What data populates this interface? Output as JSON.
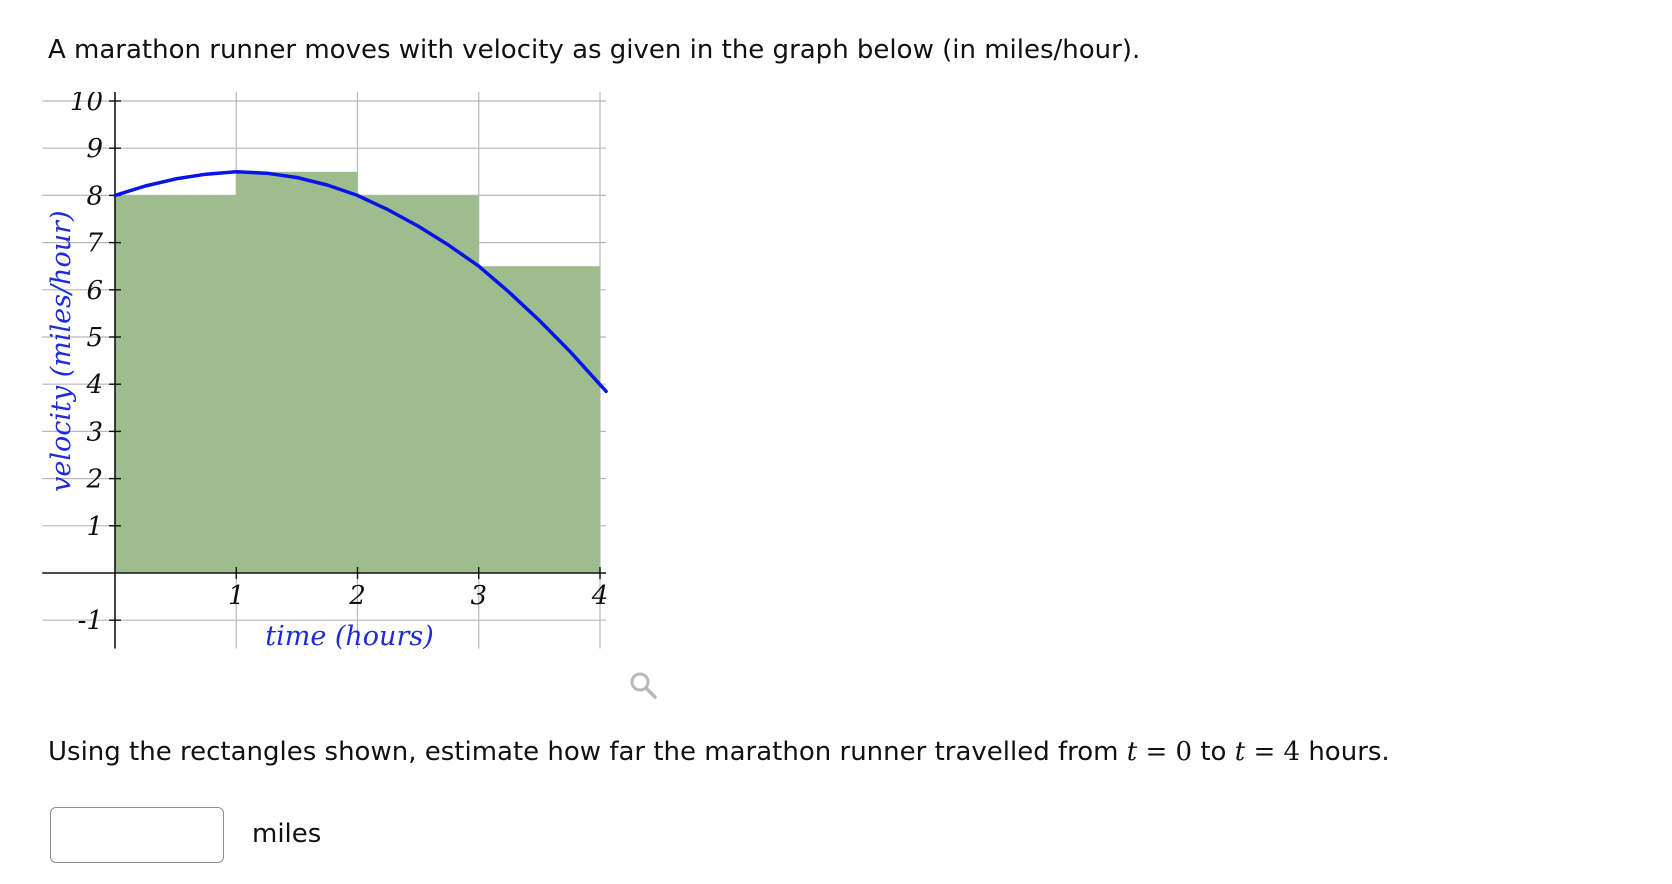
{
  "question": {
    "intro": "A marathon runner moves with velocity as given in the graph below (in miles/hour).",
    "prompt_before": "Using the rectangles shown, estimate how far the marathon runner travelled from ",
    "var_t": "t",
    "equals": "=",
    "start_value": "0",
    "to": " to ",
    "end_value": "4",
    "prompt_after": " hours."
  },
  "answer": {
    "value": "",
    "placeholder": "",
    "unit": "miles"
  },
  "chart_data": {
    "type": "area",
    "xlabel": "time (hours)",
    "ylabel": "velocity (miles/hour)",
    "xlim": [
      -0.6,
      4.05
    ],
    "ylim": [
      -1.6,
      10.2
    ],
    "x_ticks": [
      "1",
      "2",
      "3",
      "4"
    ],
    "y_ticks": [
      "10",
      "9",
      "8",
      "7",
      "6",
      "5",
      "4",
      "3",
      "2",
      "1",
      "-1"
    ],
    "grid": true,
    "rectangles": [
      {
        "x0": 0,
        "x1": 1,
        "height": 8
      },
      {
        "x0": 1,
        "x1": 2,
        "height": 8.5
      },
      {
        "x0": 2,
        "x1": 3,
        "height": 8
      },
      {
        "x0": 3,
        "x1": 4,
        "height": 6.5
      }
    ],
    "curve": {
      "x": [
        0,
        0.25,
        0.5,
        0.75,
        1,
        1.25,
        1.5,
        1.75,
        2,
        2.25,
        2.5,
        2.75,
        3,
        3.25,
        3.5,
        3.75,
        4.05
      ],
      "y": [
        8,
        8.2,
        8.35,
        8.45,
        8.5,
        8.47,
        8.38,
        8.22,
        8,
        7.7,
        7.35,
        6.95,
        6.5,
        5.95,
        5.35,
        4.7,
        3.85
      ]
    },
    "colors": {
      "rectangle_fill": "#9dbd8f",
      "curve": "#0a14e6",
      "grid": "#b9b9b9",
      "axis": "#111111",
      "axis_title": "#1f2bd6"
    }
  },
  "icons": {
    "zoom": "magnifier-icon"
  }
}
